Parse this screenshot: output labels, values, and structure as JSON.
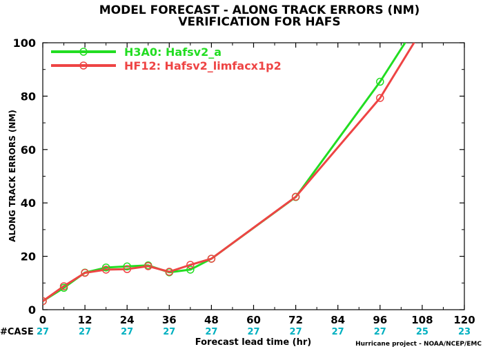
{
  "chart_data": {
    "type": "line",
    "title": "MODEL FORECAST - ALONG TRACK ERRORS (NM)",
    "subtitle": "VERIFICATION FOR HAFS",
    "xlabel": "Forecast lead time (hr)",
    "ylabel": "ALONG TRACK ERRORS (NM)",
    "xlim": [
      0,
      120
    ],
    "ylim": [
      0,
      100
    ],
    "xticks": [
      "0",
      "12",
      "24",
      "36",
      "48",
      "60",
      "72",
      "84",
      "96",
      "108",
      "120"
    ],
    "yticks": [
      "0",
      "20",
      "40",
      "60",
      "80",
      "100"
    ],
    "grid": false,
    "legend_position": "top-left",
    "series": [
      {
        "name": "H3A0: Hafsv2_a",
        "color": "#22dd22",
        "x": [
          0,
          6,
          12,
          18,
          24,
          30,
          36,
          42,
          48,
          72,
          96,
          108
        ],
        "y": [
          3.2,
          8.2,
          13.9,
          15.8,
          16.2,
          16.6,
          14.0,
          15.0,
          19.1,
          42.2,
          85.4,
          110.0
        ],
        "markers": [
          0,
          6,
          12,
          18,
          24,
          30,
          36,
          42,
          48,
          72,
          96
        ]
      },
      {
        "name": "HF12: Hafsv2_limfacx1p2",
        "color": "#ee4444",
        "x": [
          0,
          6,
          12,
          18,
          24,
          30,
          36,
          42,
          48,
          72,
          96,
          108
        ],
        "y": [
          3.2,
          8.8,
          13.8,
          15.0,
          15.2,
          16.3,
          14.2,
          16.8,
          19.1,
          42.3,
          79.3,
          105.0
        ],
        "markers": [
          0,
          6,
          12,
          18,
          24,
          30,
          36,
          42,
          48,
          72,
          96
        ]
      }
    ],
    "case_label": "#CASE",
    "case_color": "#00b0c0",
    "case_counts": [
      "27",
      "27",
      "27",
      "27",
      "27",
      "27",
      "27",
      "27",
      "27",
      "25",
      "23"
    ],
    "credit": "Hurricane project - NOAA/NCEP/EMC"
  }
}
